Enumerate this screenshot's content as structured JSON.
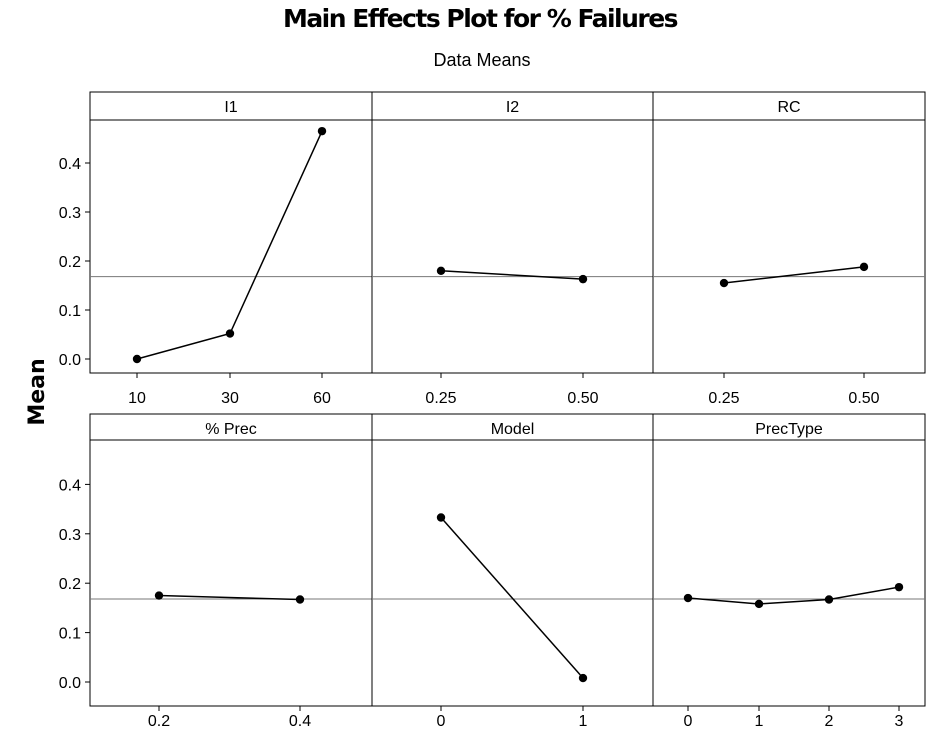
{
  "chart_data": {
    "type": "line",
    "title": "Main Effects Plot for % Failures",
    "subtitle": "Data Means",
    "ylabel": "Mean",
    "ylim": [
      -0.03,
      0.49
    ],
    "yticks": [
      "0.0",
      "0.1",
      "0.2",
      "0.3",
      "0.4"
    ],
    "reference_mean": 0.168,
    "grid": false,
    "marker": "filled-circle",
    "line_color": "#000000",
    "reference_line_color": "#777777",
    "panels": [
      {
        "name": "I1",
        "categories": [
          "10",
          "30",
          "60"
        ],
        "values": [
          0.0,
          0.052,
          0.465
        ]
      },
      {
        "name": "I2",
        "categories": [
          "0.25",
          "0.50"
        ],
        "values": [
          0.18,
          0.163
        ]
      },
      {
        "name": "RC",
        "categories": [
          "0.25",
          "0.50"
        ],
        "values": [
          0.155,
          0.188
        ]
      },
      {
        "name": "% Prec",
        "categories": [
          "0.2",
          "0.4"
        ],
        "values": [
          0.175,
          0.167
        ]
      },
      {
        "name": "Model",
        "categories": [
          "0",
          "1"
        ],
        "values": [
          0.333,
          0.008
        ]
      },
      {
        "name": "PrecType",
        "categories": [
          "0",
          "1",
          "2",
          "3"
        ],
        "values": [
          0.17,
          0.158,
          0.167,
          0.192
        ]
      }
    ]
  }
}
